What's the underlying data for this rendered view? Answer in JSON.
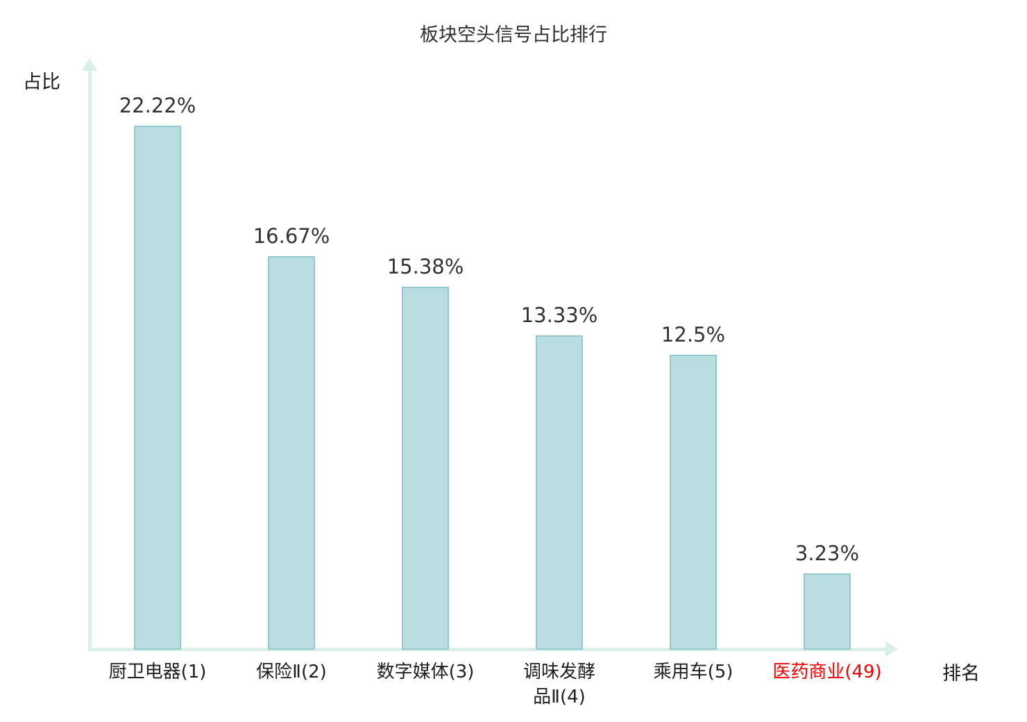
{
  "chart_data": {
    "type": "bar",
    "title": "板块空头信号占比排行",
    "xlabel": "排名",
    "ylabel": "占比",
    "categories": [
      "厨卫电器(1)",
      "保险Ⅱ(2)",
      "数字媒体(3)",
      "调味发酵\n品Ⅱ(4)",
      "乘用车(5)",
      "医药商业(49)"
    ],
    "values": [
      22.22,
      16.67,
      15.38,
      13.33,
      12.5,
      3.23
    ],
    "value_labels": [
      "22.22%",
      "16.67%",
      "15.38%",
      "13.33%",
      "12.5%",
      "3.23%"
    ],
    "highlight_index": 5,
    "ylim": [
      0,
      24
    ],
    "grid": false,
    "legend": "none",
    "colors": {
      "bar_fill": "#b9dde1",
      "bar_border": "#93c8cf",
      "axis": "#d9efe8",
      "text": "#333333",
      "highlight_label": "#f20000"
    }
  }
}
